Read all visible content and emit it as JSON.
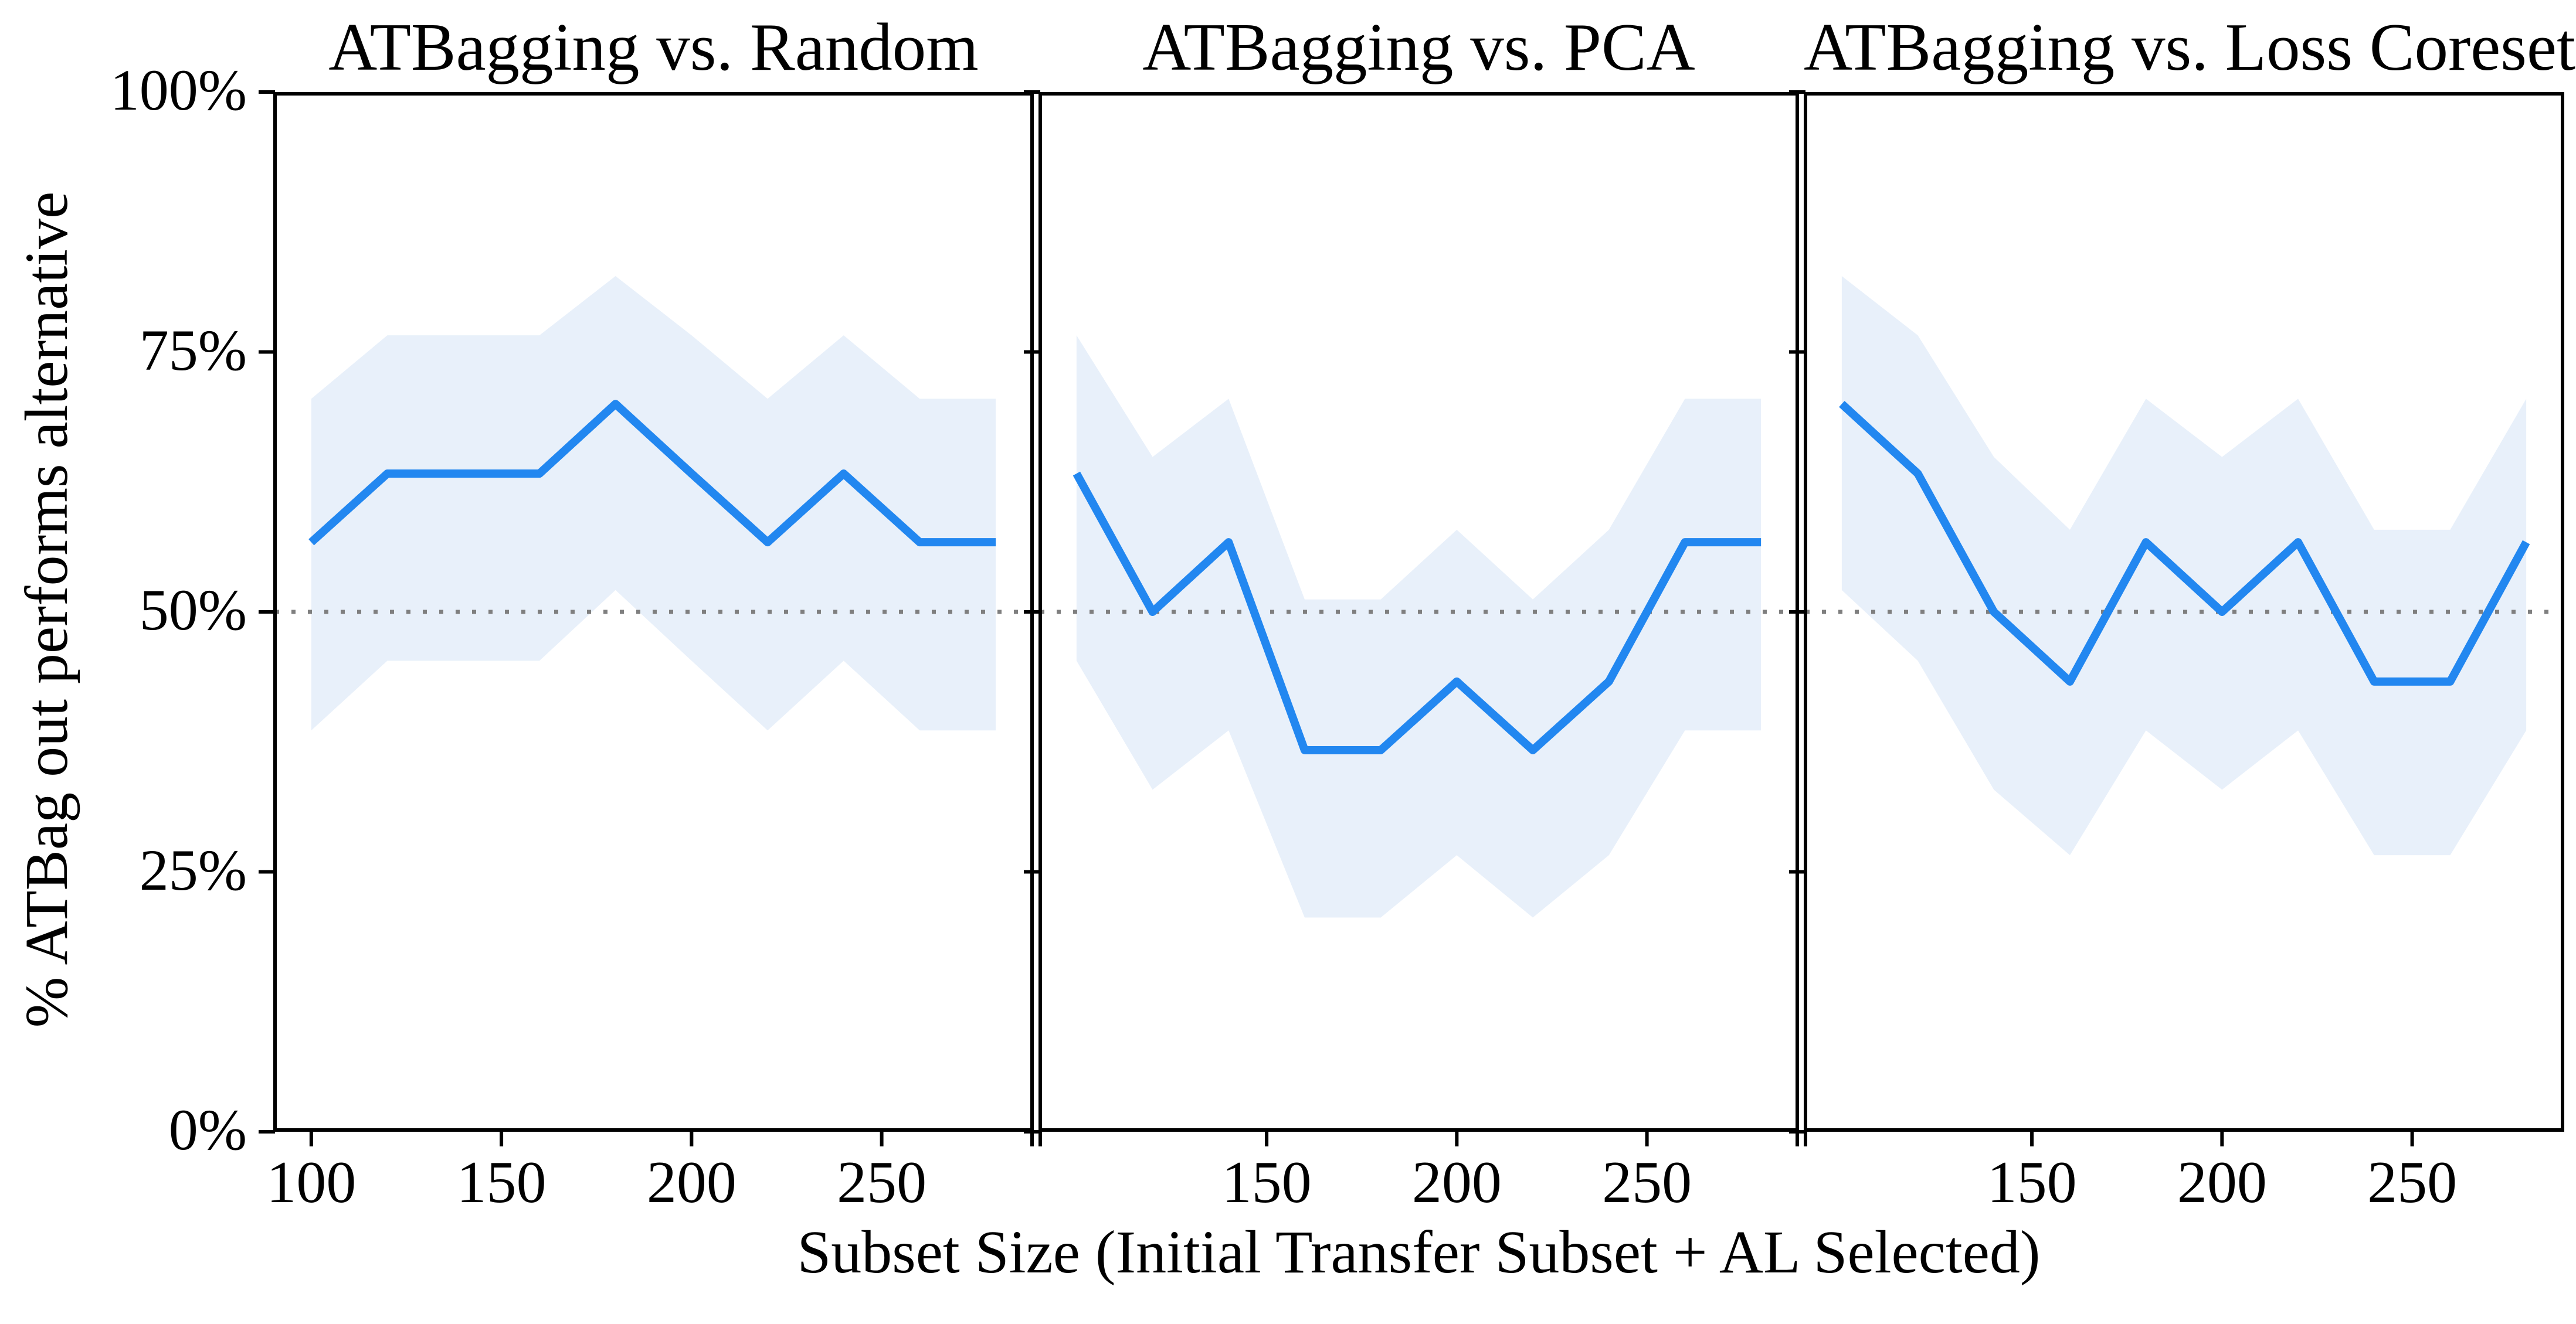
{
  "figure": {
    "xlabel": "Subset Size (Initial Transfer Subset + AL Selected)",
    "ylabel": "% ATBag out performs alternative",
    "y_tick_labels": [
      "0%",
      "25%",
      "50%",
      "75%",
      "100%"
    ],
    "y_tick_values": [
      0,
      25,
      50,
      75,
      100
    ],
    "reference_line_percent": 50,
    "colors": {
      "line": "#2287F0",
      "band": "#E8F0FA",
      "axis": "#000000",
      "reference": "#7F7F7F",
      "background": "#FFFFFF"
    }
  },
  "chart_data": [
    {
      "type": "line",
      "title": "ATBagging vs. Random",
      "x": [
        100,
        120,
        140,
        160,
        180,
        200,
        220,
        240,
        260,
        280
      ],
      "y_percent": [
        56.7,
        63.3,
        63.3,
        63.3,
        70.0,
        63.3,
        56.7,
        63.3,
        56.7,
        56.7
      ],
      "band_low_percent": [
        38.6,
        45.3,
        45.3,
        45.3,
        52.1,
        45.3,
        38.6,
        45.3,
        38.6,
        38.6
      ],
      "band_high_percent": [
        70.5,
        76.6,
        76.6,
        76.6,
        82.3,
        76.6,
        70.5,
        76.6,
        70.5,
        70.5
      ],
      "x_tick_values": [
        100,
        150,
        200,
        250
      ],
      "x_tick_labels": [
        "100",
        "150",
        "200",
        "250"
      ],
      "xlim": [
        90,
        290
      ],
      "ylim": [
        0,
        100
      ],
      "grid": false,
      "legend": null
    },
    {
      "type": "line",
      "title": "ATBagging vs. PCA",
      "x": [
        100,
        120,
        140,
        160,
        180,
        200,
        220,
        240,
        260,
        280
      ],
      "y_percent": [
        63.3,
        50.0,
        56.7,
        36.7,
        36.7,
        43.3,
        36.7,
        43.3,
        56.7,
        56.7
      ],
      "band_low_percent": [
        45.3,
        32.9,
        38.6,
        20.6,
        20.6,
        26.6,
        20.6,
        26.6,
        38.6,
        38.6
      ],
      "band_high_percent": [
        76.6,
        64.9,
        70.5,
        51.2,
        51.2,
        57.9,
        51.2,
        57.9,
        70.5,
        70.5
      ],
      "x_tick_values": [
        150,
        200,
        250
      ],
      "x_tick_labels": [
        "150",
        "200",
        "250"
      ],
      "xlim": [
        90,
        290
      ],
      "ylim": [
        0,
        100
      ],
      "grid": false,
      "legend": null
    },
    {
      "type": "line",
      "title": "ATBagging vs. Loss Coreset",
      "x": [
        100,
        120,
        140,
        160,
        180,
        200,
        220,
        240,
        260,
        280
      ],
      "y_percent": [
        70.0,
        63.3,
        50.0,
        43.3,
        56.7,
        50.0,
        56.7,
        43.3,
        43.3,
        56.7
      ],
      "band_low_percent": [
        52.1,
        45.3,
        32.9,
        26.6,
        38.6,
        32.9,
        38.6,
        26.6,
        26.6,
        38.6
      ],
      "band_high_percent": [
        82.3,
        76.6,
        64.9,
        57.9,
        70.5,
        64.9,
        70.5,
        57.9,
        57.9,
        70.5
      ],
      "x_tick_values": [
        150,
        200,
        250
      ],
      "x_tick_labels": [
        "150",
        "200",
        "250"
      ],
      "xlim": [
        90,
        290
      ],
      "ylim": [
        0,
        100
      ],
      "grid": false,
      "legend": null
    }
  ]
}
